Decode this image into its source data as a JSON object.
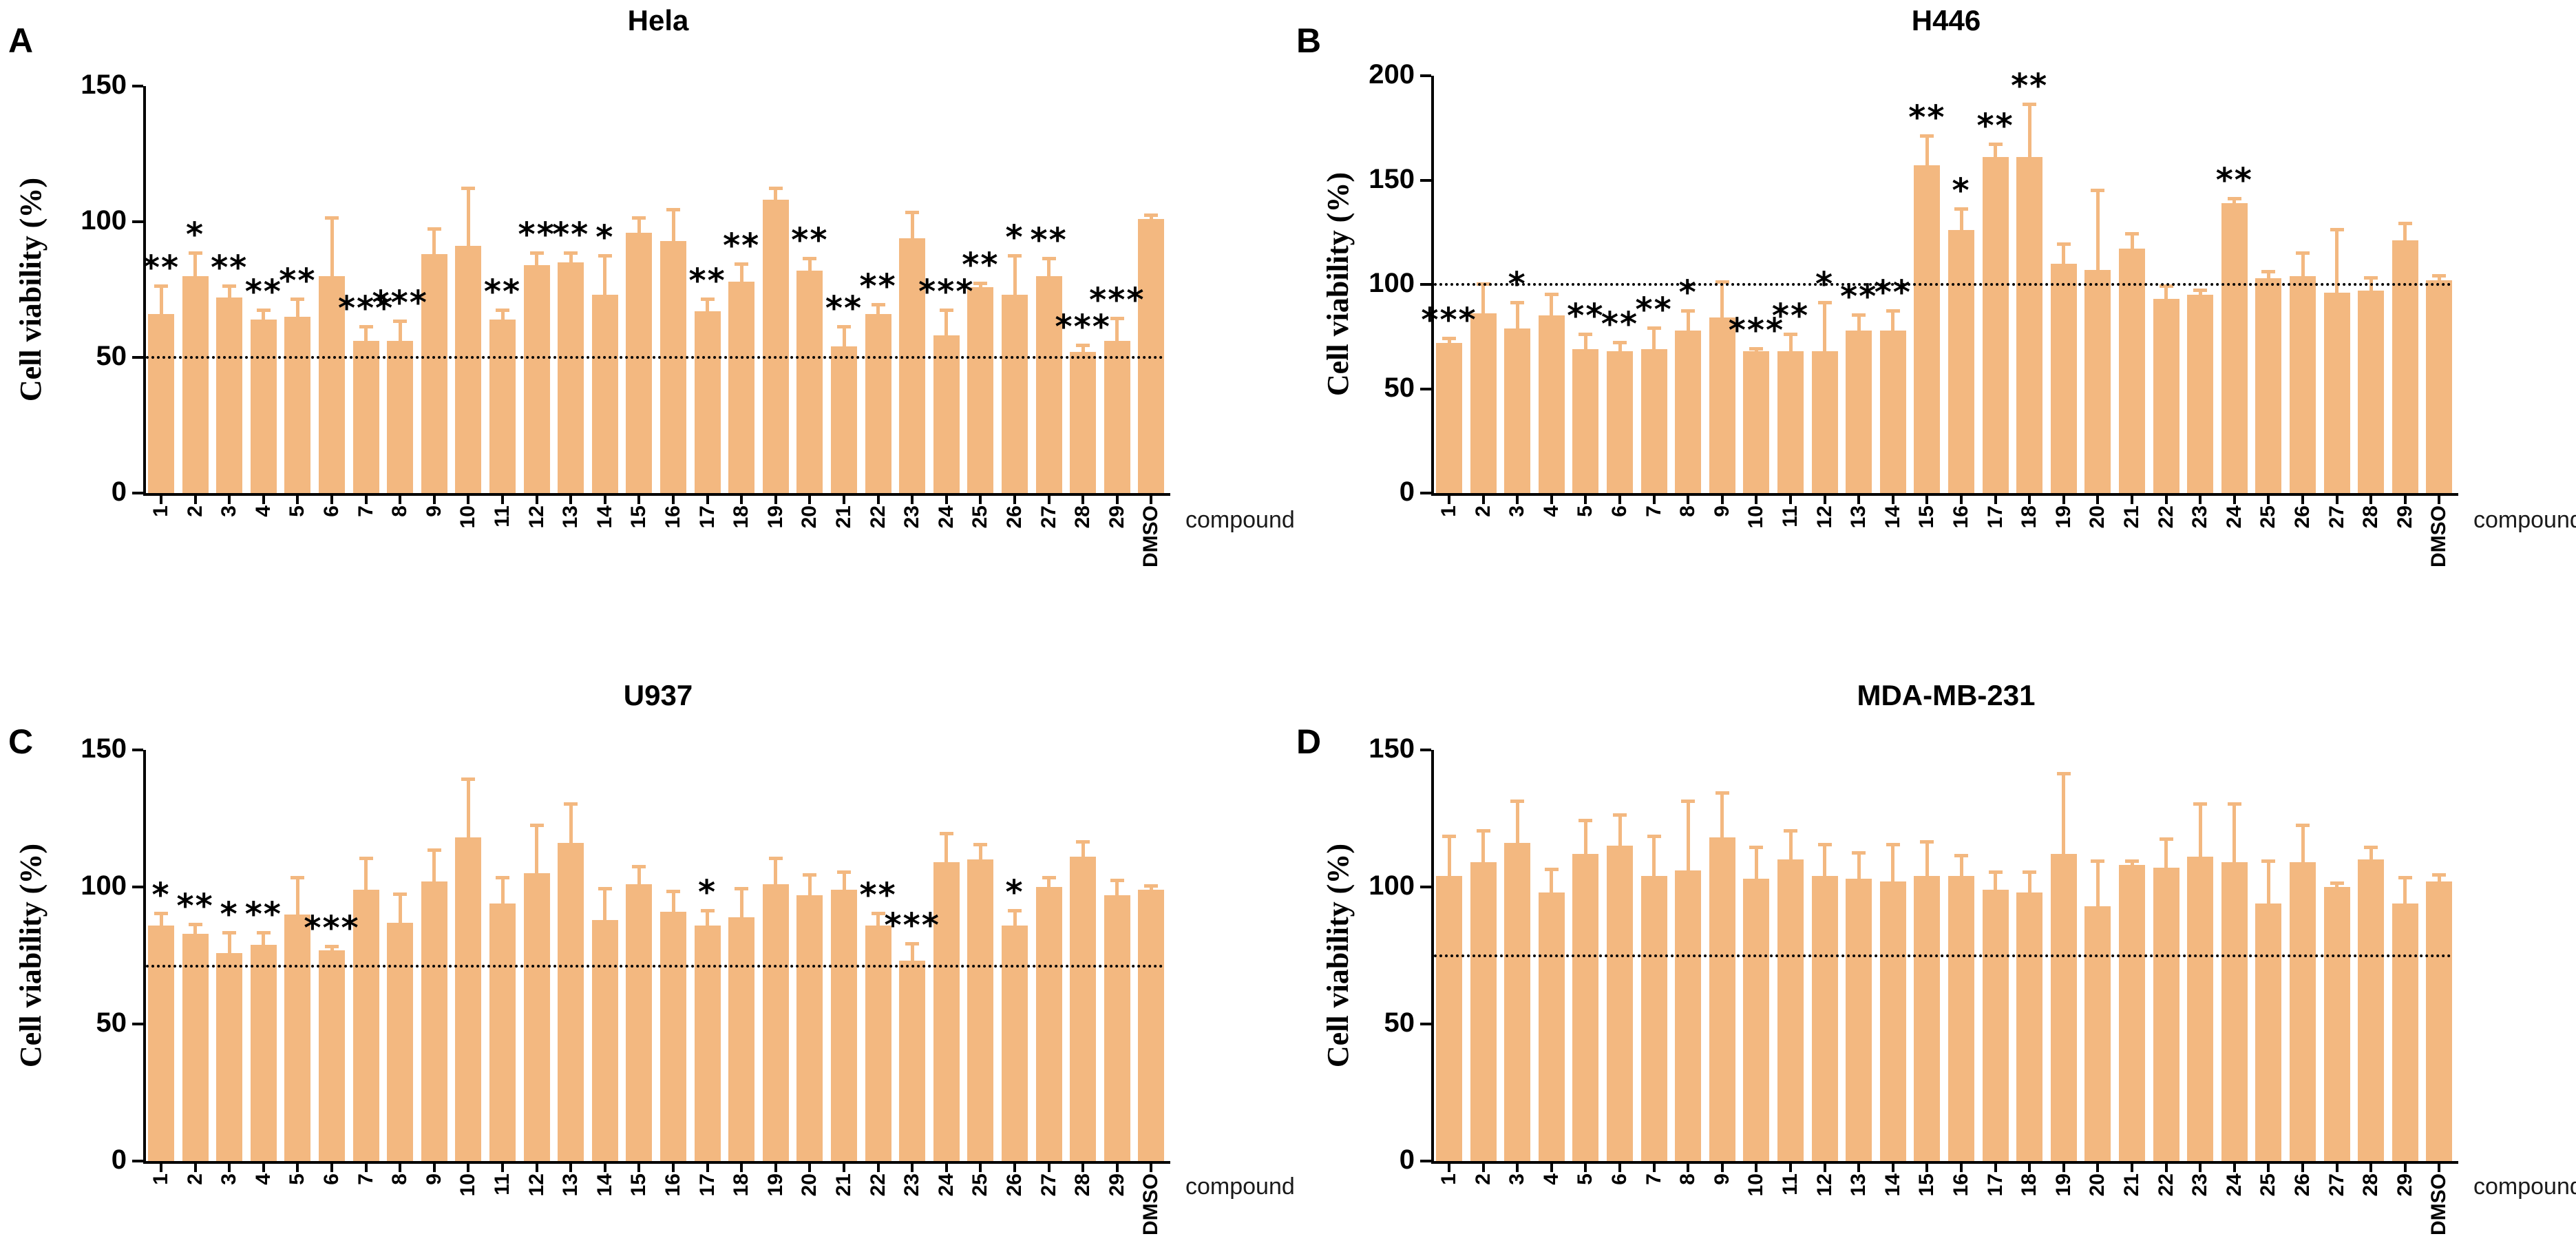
{
  "figure_caption_labels": {
    "panel_letters": [
      "A",
      "B",
      "C",
      "D"
    ],
    "shared_y_axis_label": "Cell viability (%)",
    "shared_x_axis_label": "compound"
  },
  "chart_data": [
    {
      "type": "bar",
      "panel_letter": "A",
      "title": "Hela",
      "ylabel": "Cell viability (%)",
      "xlabel": "compound",
      "ylim": [
        0,
        150
      ],
      "yticks": [
        0,
        50,
        100,
        150
      ],
      "dotted_line": 50,
      "bar_color": "#F3B880",
      "grid": false,
      "categories": [
        "1",
        "2",
        "3",
        "4",
        "5",
        "6",
        "7",
        "8",
        "9",
        "10",
        "11",
        "12",
        "13",
        "14",
        "15",
        "16",
        "17",
        "18",
        "19",
        "20",
        "21",
        "22",
        "23",
        "24",
        "25",
        "26",
        "27",
        "28",
        "29",
        "DMSO"
      ],
      "values": [
        66,
        80,
        72,
        64,
        65,
        80,
        56,
        56,
        88,
        91,
        64,
        84,
        85,
        73,
        96,
        93,
        67,
        78,
        108,
        82,
        54,
        66,
        94,
        58,
        76,
        73,
        80,
        52,
        56,
        101
      ],
      "errors": [
        11,
        9,
        5,
        4,
        7,
        22,
        6,
        8,
        10,
        22,
        4,
        5,
        4,
        15,
        6,
        12,
        5,
        7,
        5,
        5,
        8,
        4,
        10,
        10,
        2,
        15,
        7,
        3,
        9,
        2
      ],
      "significance": [
        "**",
        "*",
        "**",
        "**",
        "**",
        "",
        "***",
        "***",
        "",
        "",
        "**",
        "**",
        "**",
        "*",
        "",
        "",
        "**",
        "**",
        "",
        "**",
        "**",
        "**",
        "",
        "***",
        "**",
        "*",
        "**",
        "***",
        "***",
        ""
      ]
    },
    {
      "type": "bar",
      "panel_letter": "B",
      "title": "H446",
      "ylabel": "Cell viability (%)",
      "xlabel": "compound",
      "ylim": [
        0,
        200
      ],
      "yticks": [
        0,
        50,
        100,
        150,
        200
      ],
      "dotted_line": 100,
      "bar_color": "#F3B880",
      "grid": false,
      "categories": [
        "1",
        "2",
        "3",
        "4",
        "5",
        "6",
        "7",
        "8",
        "9",
        "10",
        "11",
        "12",
        "13",
        "14",
        "15",
        "16",
        "17",
        "18",
        "19",
        "20",
        "21",
        "22",
        "23",
        "24",
        "25",
        "26",
        "27",
        "28",
        "29",
        "DMSO"
      ],
      "values": [
        72,
        86,
        79,
        85,
        69,
        68,
        69,
        78,
        84,
        68,
        68,
        68,
        78,
        78,
        157,
        126,
        161,
        161,
        110,
        107,
        117,
        93,
        95,
        139,
        103,
        104,
        96,
        97,
        121,
        102
      ],
      "errors": [
        3,
        15,
        13,
        11,
        8,
        5,
        11,
        10,
        18,
        2,
        9,
        24,
        8,
        10,
        15,
        11,
        7,
        26,
        10,
        39,
        8,
        7,
        3,
        3,
        4,
        12,
        31,
        7,
        9,
        3
      ],
      "significance": [
        "***",
        "",
        "*",
        "",
        "**",
        "**",
        "**",
        "*",
        "",
        "***",
        "**",
        "*",
        "**",
        "**",
        "**",
        "*",
        "**",
        "**",
        "",
        "",
        "",
        "",
        "",
        "**",
        "",
        "",
        "",
        "",
        "",
        ""
      ]
    },
    {
      "type": "bar",
      "panel_letter": "C",
      "title": "U937",
      "ylabel": "Cell viability (%)",
      "xlabel": "compound",
      "ylim": [
        0,
        150
      ],
      "yticks": [
        0,
        50,
        100,
        150
      ],
      "dotted_line": 71,
      "bar_color": "#F3B880",
      "grid": false,
      "categories": [
        "1",
        "2",
        "3",
        "4",
        "5",
        "6",
        "7",
        "8",
        "9",
        "10",
        "11",
        "12",
        "13",
        "14",
        "15",
        "16",
        "17",
        "18",
        "19",
        "20",
        "21",
        "22",
        "23",
        "24",
        "25",
        "26",
        "27",
        "28",
        "29",
        "DMSO"
      ],
      "values": [
        86,
        83,
        76,
        79,
        90,
        77,
        99,
        87,
        102,
        118,
        94,
        105,
        116,
        88,
        101,
        91,
        86,
        89,
        101,
        97,
        99,
        86,
        73,
        109,
        110,
        86,
        100,
        111,
        97,
        99
      ],
      "errors": [
        5,
        4,
        8,
        5,
        14,
        2,
        12,
        11,
        12,
        22,
        10,
        18,
        15,
        12,
        7,
        8,
        6,
        11,
        10,
        8,
        7,
        5,
        7,
        11,
        6,
        6,
        4,
        6,
        6,
        2
      ],
      "significance": [
        "*",
        "**",
        "*",
        "**",
        "",
        "***",
        "",
        "",
        "",
        "",
        "",
        "",
        "",
        "",
        "",
        "",
        "*",
        "",
        "",
        "",
        "",
        "**",
        "***",
        "",
        "",
        "*",
        "",
        "",
        "",
        ""
      ]
    },
    {
      "type": "bar",
      "panel_letter": "D",
      "title": "MDA-MB-231",
      "ylabel": "Cell viability (%)",
      "xlabel": "compound",
      "ylim": [
        0,
        150
      ],
      "yticks": [
        0,
        50,
        100,
        150
      ],
      "dotted_line": 75,
      "bar_color": "#F3B880",
      "grid": false,
      "categories": [
        "1",
        "2",
        "3",
        "4",
        "5",
        "6",
        "7",
        "8",
        "9",
        "10",
        "11",
        "12",
        "13",
        "14",
        "15",
        "16",
        "17",
        "18",
        "19",
        "20",
        "21",
        "22",
        "23",
        "24",
        "25",
        "26",
        "27",
        "28",
        "29",
        "DMSO"
      ],
      "values": [
        104,
        109,
        116,
        98,
        112,
        115,
        104,
        106,
        118,
        103,
        110,
        104,
        103,
        102,
        104,
        104,
        99,
        98,
        112,
        93,
        108,
        107,
        111,
        109,
        94,
        109,
        100,
        110,
        94,
        102
      ],
      "errors": [
        15,
        12,
        16,
        9,
        13,
        12,
        15,
        26,
        17,
        12,
        11,
        12,
        10,
        14,
        13,
        8,
        7,
        8,
        30,
        17,
        2,
        11,
        20,
        22,
        16,
        14,
        2,
        5,
        10,
        3
      ],
      "significance": [
        "",
        "",
        "",
        "",
        "",
        "",
        "",
        "",
        "",
        "",
        "",
        "",
        "",
        "",
        "",
        "",
        "",
        "",
        "",
        "",
        "",
        "",
        "",
        "",
        "",
        "",
        "",
        "",
        "",
        ""
      ]
    }
  ]
}
